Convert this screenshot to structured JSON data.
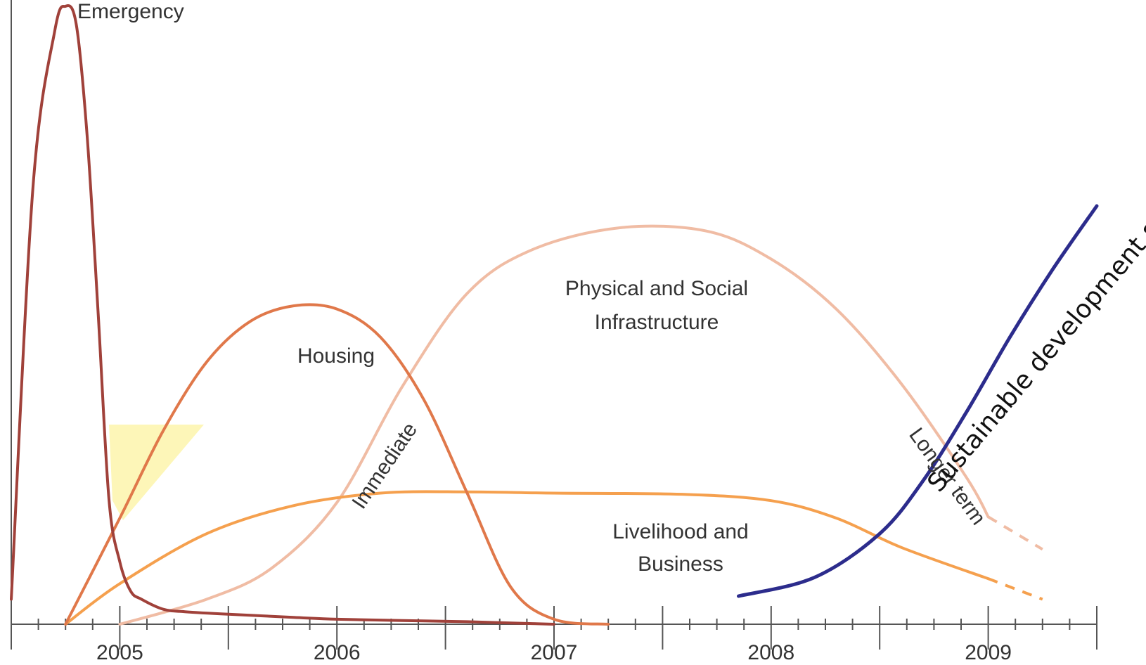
{
  "chart_data": {
    "type": "line",
    "title": "",
    "xlabel": "",
    "ylabel": "",
    "xlim": [
      2004.5,
      2009.5
    ],
    "ylim": [
      0,
      100
    ],
    "x_ticks": [
      "2005",
      "2006",
      "2007",
      "2008",
      "2009"
    ],
    "grid": false,
    "legend": "none",
    "series": [
      {
        "name": "Emergency",
        "color": "#a0413a",
        "x": [
          2004.5,
          2004.6,
          2004.7,
          2004.75,
          2004.8,
          2004.85,
          2004.9,
          2004.95,
          2005.0,
          2005.05,
          2005.1,
          2005.2,
          2005.3,
          2005.5,
          2005.8,
          2006.0,
          2006.3,
          2006.6,
          2006.9,
          2007.0
        ],
        "y": [
          4,
          70,
          95,
          99,
          96,
          78,
          50,
          20,
          10,
          5.3,
          4,
          2.4,
          2.0,
          1.6,
          1.1,
          0.8,
          0.6,
          0.4,
          0.1,
          0
        ]
      },
      {
        "name": "Housing",
        "color": "#e0784a",
        "x": [
          2004.75,
          2005.0,
          2005.2,
          2005.4,
          2005.6,
          2005.8,
          2006.0,
          2006.2,
          2006.4,
          2006.6,
          2006.8,
          2007.0,
          2007.25
        ],
        "y": [
          0,
          17,
          31,
          42,
          48.5,
          51,
          50.5,
          46,
          36,
          21,
          6,
          0.8,
          0
        ]
      },
      {
        "name": "Physical and Social Infrastructure",
        "color": "#f0bca4",
        "x": [
          2005.0,
          2005.4,
          2005.7,
          2006.0,
          2006.3,
          2006.6,
          2006.9,
          2007.3,
          2007.7,
          2008.0,
          2008.3,
          2008.6,
          2008.9,
          2009.0,
          2009.25
        ],
        "y": [
          0,
          4,
          9,
          19.5,
          38,
          53,
          60,
          63.5,
          63,
          58.5,
          50.5,
          38.5,
          23.5,
          17.2,
          12
        ]
      },
      {
        "name": "Livelihood and Business",
        "color": "#f5a04e",
        "x": [
          2004.75,
          2005.0,
          2005.4,
          2005.8,
          2006.2,
          2006.6,
          2007.0,
          2007.6,
          2008.0,
          2008.3,
          2008.6,
          2009.0,
          2009.25
        ],
        "y": [
          0,
          6.5,
          14.5,
          19,
          21,
          21.2,
          21,
          20.8,
          19.8,
          17,
          12.3,
          7.3,
          4
        ]
      },
      {
        "name": "Sustainable development stage",
        "color": "#2c2c8c",
        "x": [
          2007.85,
          2008.2,
          2008.5,
          2008.7,
          2008.9,
          2009.1,
          2009.3,
          2009.5
        ],
        "y": [
          4.5,
          7.5,
          14.5,
          23,
          34,
          46,
          57,
          67
        ]
      }
    ],
    "annotations": [
      "Emergency",
      "Housing",
      "Physical and Social",
      "Infrastructure",
      "Livelihood and",
      "Business",
      "Immediate",
      "Longer term",
      "Sustainable development stage"
    ]
  }
}
